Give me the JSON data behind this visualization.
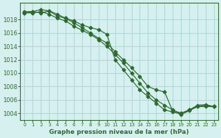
{
  "title": "Graphe pression niveau de la mer (hPa)",
  "background_color": "#d6f0f0",
  "grid_color": "#b0d8d8",
  "line_color": "#2d6a2d",
  "xlim": [
    -0.5,
    23.5
  ],
  "ylim": [
    1003.0,
    1020.5
  ],
  "yticks": [
    1004,
    1006,
    1008,
    1010,
    1012,
    1014,
    1016,
    1018
  ],
  "xticks": [
    0,
    1,
    2,
    3,
    4,
    5,
    6,
    7,
    8,
    9,
    10,
    11,
    12,
    13,
    14,
    15,
    16,
    17,
    18,
    19,
    20,
    21,
    22,
    23
  ],
  "series": [
    [
      1019.0,
      1019.2,
      1019.0,
      1019.3,
      1018.5,
      1018.2,
      1017.8,
      1017.2,
      1016.8,
      1016.5,
      1015.8,
      1012.0,
      1010.5,
      1009.0,
      1007.5,
      1006.5,
      1005.5,
      1004.5,
      1004.2,
      1004.0,
      1004.5,
      1005.0,
      1005.2,
      1005.0
    ],
    [
      1019.2,
      1019.2,
      1019.5,
      1019.3,
      1018.8,
      1018.2,
      1017.5,
      1016.8,
      1016.0,
      1015.2,
      1014.5,
      1013.2,
      1012.0,
      1010.8,
      1009.5,
      1008.0,
      1007.5,
      1007.2,
      1004.3,
      1003.8,
      1004.4,
      1005.0,
      1005.0,
      1005.0
    ],
    [
      1019.0,
      1019.0,
      1019.2,
      1018.8,
      1018.2,
      1017.8,
      1017.0,
      1016.4,
      1015.8,
      1015.0,
      1014.0,
      1012.8,
      1011.5,
      1010.0,
      1008.5,
      1007.0,
      1006.0,
      1005.2,
      1004.5,
      1004.0,
      1004.5,
      1005.2,
      1005.3,
      1005.0
    ]
  ]
}
